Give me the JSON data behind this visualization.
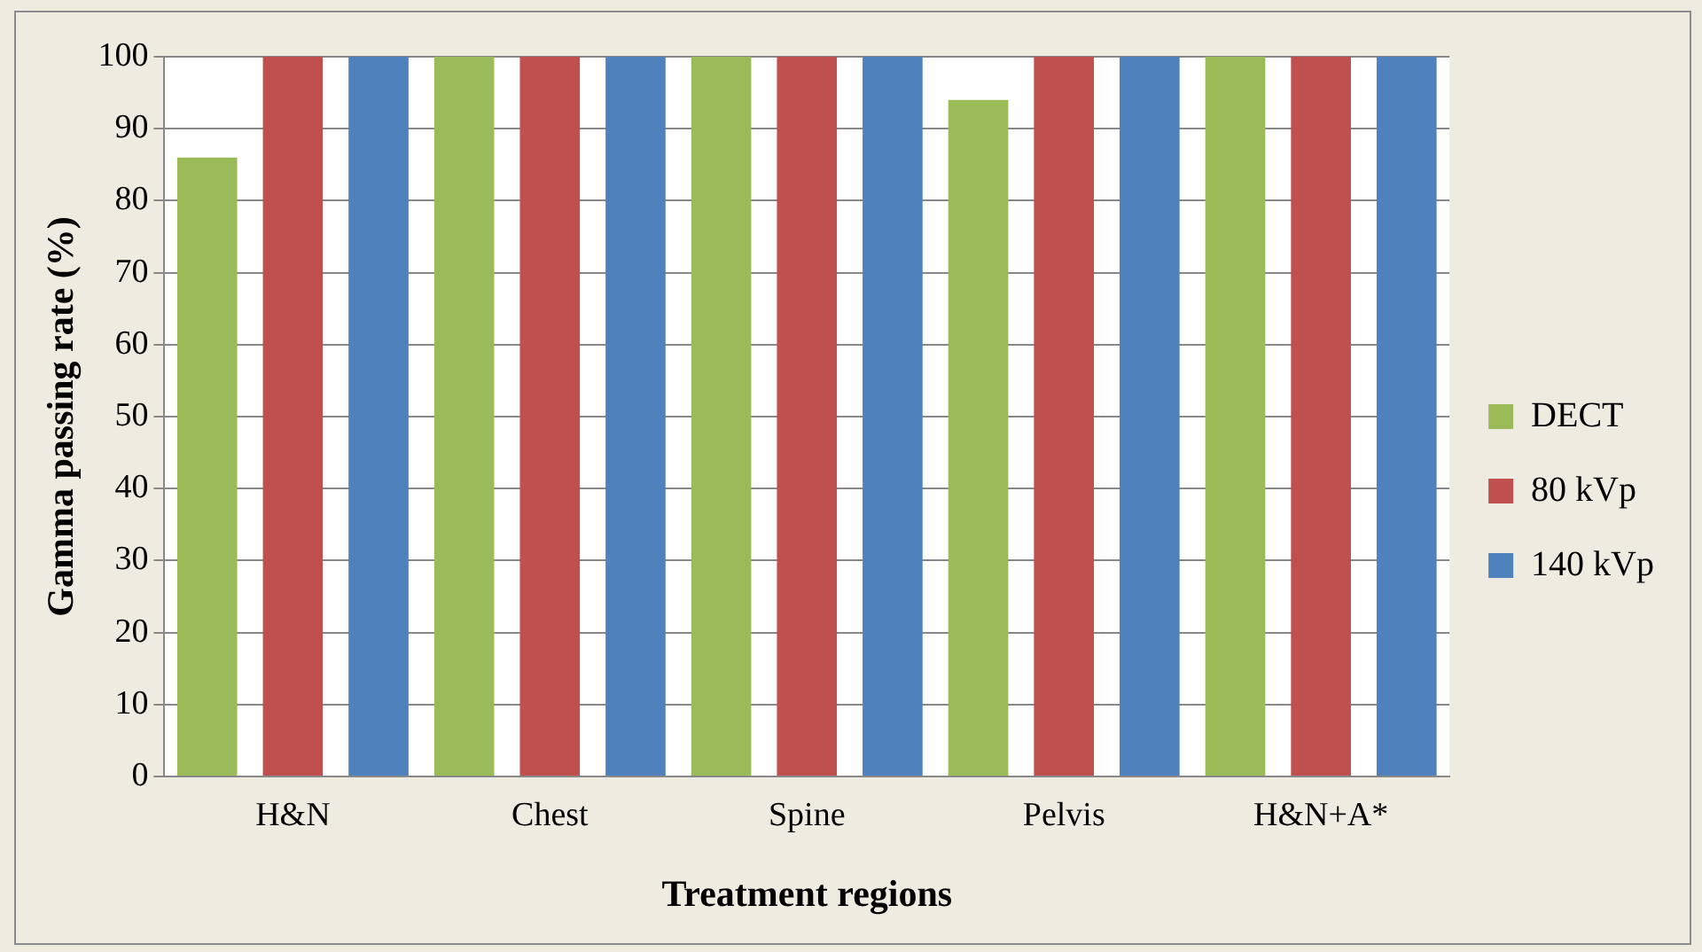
{
  "chart_data": {
    "type": "bar",
    "xlabel": "Treatment regions",
    "ylabel": "Gamma passing rate (%)",
    "categories": [
      "H&N",
      "Chest",
      "Spine",
      "Pelvis",
      "H&N+A*"
    ],
    "series": [
      {
        "name": "DECT",
        "color": "#9bbb59",
        "values": [
          86,
          100,
          100,
          94,
          100
        ]
      },
      {
        "name": "80 kVp",
        "color": "#c0504d",
        "values": [
          100,
          100,
          100,
          100,
          100
        ]
      },
      {
        "name": "140 kVp",
        "color": "#4f81bd",
        "values": [
          100,
          100,
          100,
          100,
          100
        ]
      }
    ],
    "ylim": [
      0,
      100
    ],
    "yticks": [
      0,
      10,
      20,
      30,
      40,
      50,
      60,
      70,
      80,
      90,
      100
    ],
    "grid": "y",
    "legend": "right"
  }
}
